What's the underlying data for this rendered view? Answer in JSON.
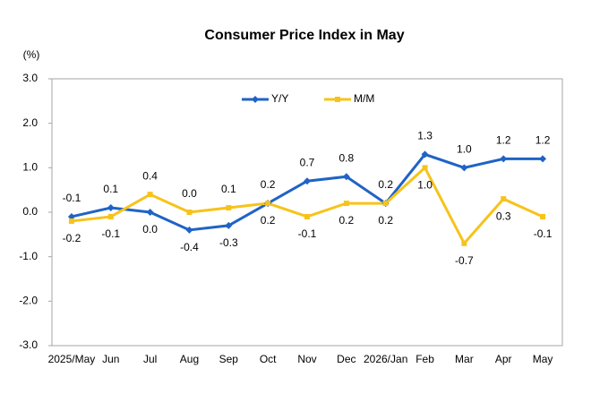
{
  "chart_data": {
    "type": "line",
    "title": "Consumer Price Index in May",
    "y_label": "(%)",
    "categories": [
      "2025/May",
      "Jun",
      "Jul",
      "Aug",
      "Sep",
      "Oct",
      "Nov",
      "Dec",
      "2026/Jan",
      "Feb",
      "Mar",
      "Apr",
      "May"
    ],
    "series": [
      {
        "name": "Y/Y",
        "color": "#1f63c6",
        "marker": "diamond",
        "values": [
          -0.1,
          0.1,
          0.0,
          -0.4,
          -0.3,
          0.2,
          0.7,
          0.8,
          0.2,
          1.3,
          1.0,
          1.2,
          1.2
        ],
        "value_labels": [
          "-0.1",
          "0.1",
          "0.0",
          "-0.4",
          "-0.3",
          "0.2",
          "0.7",
          "0.8",
          "0.2",
          "1.3",
          "1.0",
          "1.2",
          "1.2"
        ]
      },
      {
        "name": "M/M",
        "color": "#f7c31a",
        "marker": "square",
        "values": [
          -0.2,
          -0.1,
          0.4,
          0.0,
          0.1,
          0.2,
          -0.1,
          0.2,
          0.2,
          1.0,
          -0.7,
          0.3,
          -0.1
        ],
        "value_labels": [
          "-0.2",
          "-0.1",
          "0.4",
          "0.0",
          "0.1",
          "0.2",
          "-0.1",
          "0.2",
          "0.2",
          "1.0",
          "-0.7",
          "0.3",
          "-0.1"
        ]
      }
    ],
    "ylim": [
      -3,
      3
    ],
    "yticks": [
      {
        "value": -3,
        "label": "-3.0"
      },
      {
        "value": -2,
        "label": "-2.0"
      },
      {
        "value": -1,
        "label": "-1.0"
      },
      {
        "value": 0,
        "label": "0.0"
      },
      {
        "value": 1,
        "label": "1.0"
      },
      {
        "value": 2,
        "label": "2.0"
      },
      {
        "value": 3,
        "label": "3.0"
      }
    ],
    "grid": false,
    "legend": "top"
  }
}
